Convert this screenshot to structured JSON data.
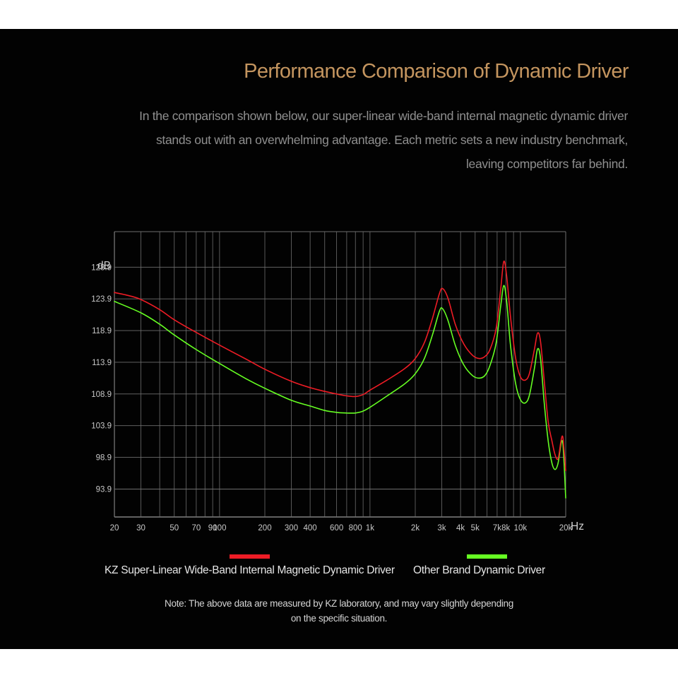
{
  "title": "Performance Comparison of Dynamic Driver",
  "intro": "In the comparison shown below, our super-linear wide-band internal magnetic dynamic driver stands out with an overwhelming advantage. Each metric sets a new industry benchmark, leaving competitors far behind.",
  "note": "Note: The above data are measured by KZ laboratory, and may vary slightly depending on the specific situation.",
  "colors": {
    "title": "#c4955f",
    "background": "#020202",
    "grid": "#6e6e6e",
    "kz": "#ee1c25",
    "other": "#66ff22"
  },
  "chart_data": {
    "type": "line",
    "xscale": "log",
    "xlabel": "Hz",
    "ylabel": "dB",
    "xlim": [
      20,
      20000
    ],
    "ylim": [
      89.5,
      134.5
    ],
    "grid": true,
    "yticks": [
      93.9,
      98.9,
      103.9,
      108.9,
      113.9,
      118.9,
      123.9,
      128.9
    ],
    "ytick_labels": [
      "93.9",
      "98.9",
      "103.9",
      "108.9",
      "113.9",
      "118.9",
      "123.9",
      "128.9"
    ],
    "xgrid": [
      20,
      30,
      40,
      50,
      60,
      70,
      80,
      90,
      100,
      200,
      300,
      400,
      500,
      600,
      700,
      800,
      900,
      1000,
      2000,
      3000,
      4000,
      5000,
      6000,
      7000,
      8000,
      9000,
      10000,
      20000
    ],
    "xticks": [
      {
        "value": 20,
        "label": "20"
      },
      {
        "value": 30,
        "label": "30"
      },
      {
        "value": 50,
        "label": "50"
      },
      {
        "value": 70,
        "label": "70"
      },
      {
        "value": 90,
        "label": "90"
      },
      {
        "value": 100,
        "label": "100"
      },
      {
        "value": 200,
        "label": "200"
      },
      {
        "value": 300,
        "label": "300"
      },
      {
        "value": 400,
        "label": "400"
      },
      {
        "value": 600,
        "label": "600"
      },
      {
        "value": 800,
        "label": "800"
      },
      {
        "value": 1000,
        "label": "1k"
      },
      {
        "value": 2000,
        "label": "2k"
      },
      {
        "value": 3000,
        "label": "3k"
      },
      {
        "value": 4000,
        "label": "4k"
      },
      {
        "value": 5000,
        "label": "5k"
      },
      {
        "value": 7000,
        "label": "7k"
      },
      {
        "value": 8000,
        "label": "8k"
      },
      {
        "value": 10000,
        "label": "10k"
      },
      {
        "value": 20000,
        "label": "20k"
      }
    ],
    "series": [
      {
        "name": "KZ Super-Linear Wide-Band Internal Magnetic Dynamic Driver",
        "color": "#ee1c25",
        "points": [
          [
            20,
            124.9
          ],
          [
            25,
            124.4
          ],
          [
            30,
            123.8
          ],
          [
            40,
            122.2
          ],
          [
            50,
            120.6
          ],
          [
            70,
            118.6
          ],
          [
            100,
            116.6
          ],
          [
            150,
            114.4
          ],
          [
            200,
            112.8
          ],
          [
            300,
            110.9
          ],
          [
            400,
            109.9
          ],
          [
            500,
            109.3
          ],
          [
            600,
            108.9
          ],
          [
            700,
            108.6
          ],
          [
            800,
            108.5
          ],
          [
            900,
            108.8
          ],
          [
            1000,
            109.5
          ],
          [
            1300,
            111.1
          ],
          [
            1700,
            112.9
          ],
          [
            2000,
            114.5
          ],
          [
            2300,
            117.0
          ],
          [
            2600,
            120.8
          ],
          [
            2900,
            124.8
          ],
          [
            3050,
            125.5
          ],
          [
            3300,
            124.0
          ],
          [
            3700,
            119.8
          ],
          [
            4200,
            116.8
          ],
          [
            4800,
            115.0
          ],
          [
            5300,
            114.5
          ],
          [
            5800,
            114.8
          ],
          [
            6300,
            116.0
          ],
          [
            6900,
            119.3
          ],
          [
            7400,
            125.5
          ],
          [
            7750,
            129.8
          ],
          [
            8100,
            127.5
          ],
          [
            8600,
            121.0
          ],
          [
            9300,
            114.5
          ],
          [
            10000,
            111.6
          ],
          [
            10800,
            111.1
          ],
          [
            11500,
            112.2
          ],
          [
            12400,
            116.0
          ],
          [
            13000,
            118.5
          ],
          [
            13600,
            117.2
          ],
          [
            14400,
            111.0
          ],
          [
            15300,
            104.5
          ],
          [
            16200,
            101.5
          ],
          [
            17000,
            99.3
          ],
          [
            17800,
            98.7
          ],
          [
            18600,
            101.5
          ],
          [
            19100,
            102.2
          ],
          [
            19500,
            100.0
          ],
          [
            20000,
            96.8
          ]
        ]
      },
      {
        "name": "Other Brand Dynamic Driver",
        "color": "#66ff22",
        "points": [
          [
            20,
            123.5
          ],
          [
            30,
            121.7
          ],
          [
            40,
            119.9
          ],
          [
            50,
            118.2
          ],
          [
            70,
            115.9
          ],
          [
            100,
            113.7
          ],
          [
            150,
            111.3
          ],
          [
            200,
            109.8
          ],
          [
            300,
            107.9
          ],
          [
            400,
            107.0
          ],
          [
            500,
            106.3
          ],
          [
            600,
            106.0
          ],
          [
            700,
            105.9
          ],
          [
            800,
            105.9
          ],
          [
            900,
            106.2
          ],
          [
            1000,
            106.8
          ],
          [
            1300,
            108.6
          ],
          [
            1700,
            110.5
          ],
          [
            2000,
            112.1
          ],
          [
            2300,
            114.5
          ],
          [
            2600,
            118.2
          ],
          [
            2900,
            122.0
          ],
          [
            3050,
            122.3
          ],
          [
            3300,
            120.5
          ],
          [
            3700,
            116.5
          ],
          [
            4200,
            113.5
          ],
          [
            4800,
            111.8
          ],
          [
            5300,
            111.4
          ],
          [
            5800,
            111.8
          ],
          [
            6300,
            113.5
          ],
          [
            6900,
            117.0
          ],
          [
            7400,
            122.8
          ],
          [
            7750,
            126.0
          ],
          [
            8100,
            123.5
          ],
          [
            8600,
            116.5
          ],
          [
            9300,
            110.5
          ],
          [
            10000,
            108.0
          ],
          [
            10800,
            107.5
          ],
          [
            11500,
            108.8
          ],
          [
            12400,
            113.0
          ],
          [
            13000,
            116.0
          ],
          [
            13600,
            114.5
          ],
          [
            14400,
            107.5
          ],
          [
            15300,
            101.5
          ],
          [
            16200,
            98.0
          ],
          [
            17000,
            97.0
          ],
          [
            17800,
            98.0
          ],
          [
            18600,
            101.0
          ],
          [
            19100,
            101.3
          ],
          [
            19500,
            98.0
          ],
          [
            20000,
            92.5
          ]
        ]
      }
    ]
  }
}
